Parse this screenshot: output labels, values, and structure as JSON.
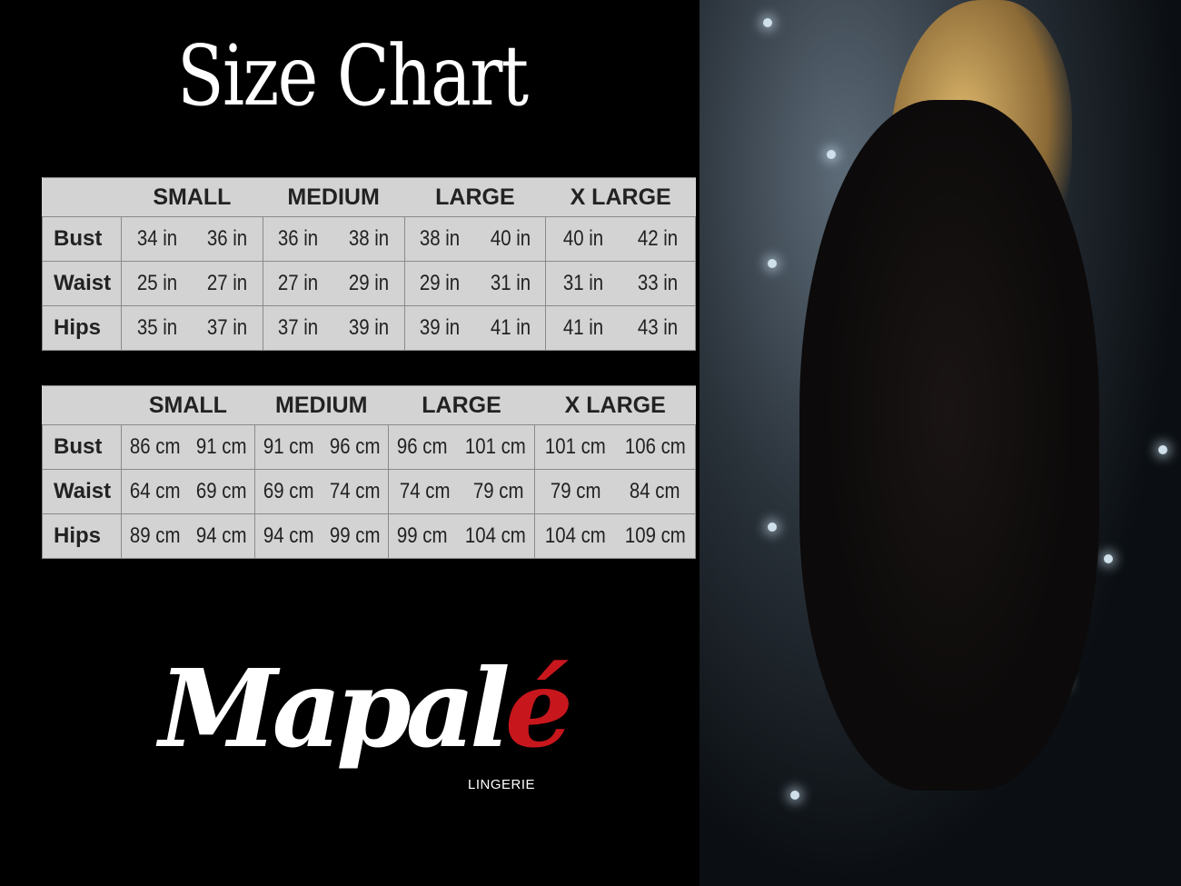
{
  "title": "Size Chart",
  "sizes": [
    "SMALL",
    "MEDIUM",
    "LARGE",
    "X LARGE"
  ],
  "inches": {
    "rows": [
      {
        "label": "Bust",
        "values": [
          "34 in",
          "36 in",
          "36 in",
          "38 in",
          "38 in",
          "40 in",
          "40 in",
          "42 in"
        ]
      },
      {
        "label": "Waist",
        "values": [
          "25 in",
          "27 in",
          "27 in",
          "29 in",
          "29 in",
          "31 in",
          "31 in",
          "33 in"
        ]
      },
      {
        "label": "Hips",
        "values": [
          "35 in",
          "37 in",
          "37 in",
          "39 in",
          "39 in",
          "41 in",
          "41 in",
          "43 in"
        ]
      }
    ]
  },
  "cm": {
    "rows": [
      {
        "label": "Bust",
        "values": [
          "86 cm",
          "91 cm",
          "91 cm",
          "96 cm",
          "96 cm",
          "101 cm",
          "101 cm",
          "106 cm"
        ]
      },
      {
        "label": "Waist",
        "values": [
          "64 cm",
          "69 cm",
          "69 cm",
          "74 cm",
          "74 cm",
          "79  cm",
          "79 cm",
          "84 cm"
        ]
      },
      {
        "label": "Hips",
        "values": [
          "89 cm",
          "94 cm",
          "94 cm",
          "99 cm",
          "99 cm",
          "104 cm",
          "104 cm",
          "109 cm"
        ]
      }
    ]
  },
  "logo": {
    "text_main": "Mapal",
    "text_accent": "é",
    "subtitle": "LINGERIE",
    "accent_color": "#c8161d"
  }
}
